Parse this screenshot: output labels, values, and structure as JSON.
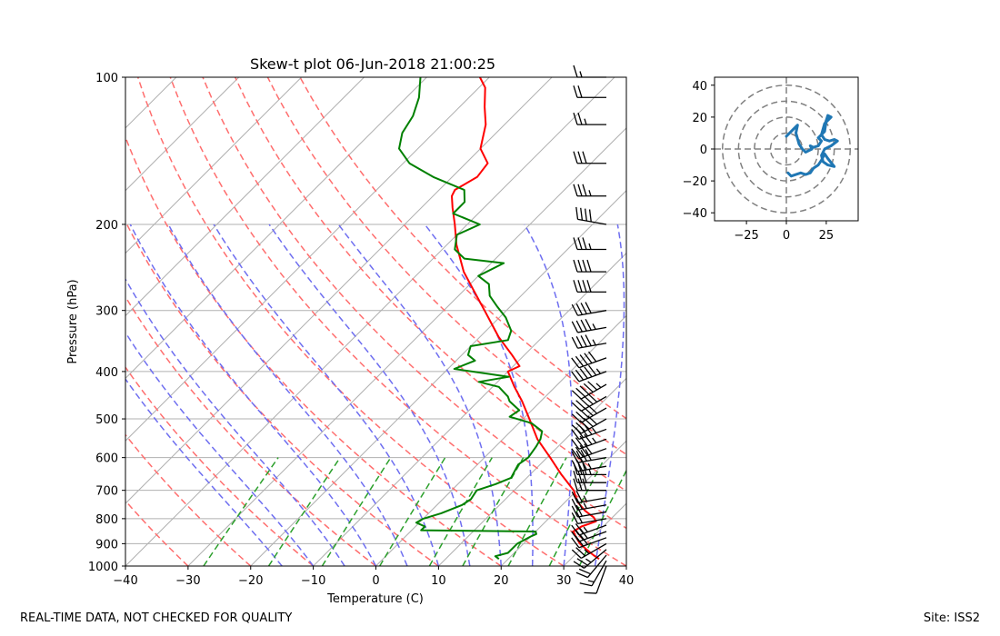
{
  "chart_data": [
    {
      "type": "line",
      "kind": "skew-t log-p",
      "title": "Skew-t plot 06-Jun-2018 21:00:25",
      "xlabel": "Temperature (C)",
      "ylabel": "Pressure (hPa)",
      "xlim": [
        -40,
        40
      ],
      "ylim": [
        1000,
        100
      ],
      "x_ticks": [
        -40,
        -30,
        -20,
        -10,
        0,
        10,
        20,
        30,
        40
      ],
      "x_tick_labels": [
        "−40",
        "−30",
        "−20",
        "−10",
        "0",
        "10",
        "20",
        "30",
        "40"
      ],
      "y_ticks": [
        1000,
        900,
        800,
        700,
        600,
        500,
        400,
        300,
        200,
        100
      ],
      "y_tick_labels": [
        "1000",
        "900",
        "800",
        "700",
        "600",
        "500",
        "400",
        "300",
        "200",
        "100"
      ],
      "grid": true,
      "skew_deg": 45,
      "series": [
        {
          "name": "Temperature",
          "color": "#ff0000",
          "points": [
            [
              967,
              34.5
            ],
            [
              950,
              33.0
            ],
            [
              925,
              31.0
            ],
            [
              900,
              29.0
            ],
            [
              875,
              27.5
            ],
            [
              850,
              26.0
            ],
            [
              830,
              26.5
            ],
            [
              810,
              28.0
            ],
            [
              795,
              27.0
            ],
            [
              770,
              24.5
            ],
            [
              740,
              22.0
            ],
            [
              700,
              19.5
            ],
            [
              650,
              15.0
            ],
            [
              600,
              10.5
            ],
            [
              550,
              5.5
            ],
            [
              500,
              1.0
            ],
            [
              460,
              -3.0
            ],
            [
              430,
              -6.5
            ],
            [
              400,
              -10.0
            ],
            [
              390,
              -9.0
            ],
            [
              370,
              -12.0
            ],
            [
              340,
              -17.0
            ],
            [
              300,
              -23.5
            ],
            [
              270,
              -29.0
            ],
            [
              250,
              -33.0
            ],
            [
              220,
              -38.5
            ],
            [
              200,
              -42.0
            ],
            [
              185,
              -45.0
            ],
            [
              175,
              -47.0
            ],
            [
              170,
              -47.5
            ],
            [
              160,
              -46.0
            ],
            [
              150,
              -46.5
            ],
            [
              140,
              -50.0
            ],
            [
              125,
              -53.0
            ],
            [
              115,
              -56.0
            ],
            [
              105,
              -59.0
            ],
            [
              100,
              -61.5
            ]
          ]
        },
        {
          "name": "Dewpoint",
          "color": "#008000",
          "points": [
            [
              967,
              18.5
            ],
            [
              955,
              17.5
            ],
            [
              940,
              19.0
            ],
            [
              900,
              19.0
            ],
            [
              870,
              20.0
            ],
            [
              860,
              20.5
            ],
            [
              850,
              20.0
            ],
            [
              845,
              1.5
            ],
            [
              830,
              1.5
            ],
            [
              815,
              -0.5
            ],
            [
              800,
              0.0
            ],
            [
              780,
              2.0
            ],
            [
              750,
              4.0
            ],
            [
              730,
              4.5
            ],
            [
              700,
              4.0
            ],
            [
              680,
              6.0
            ],
            [
              660,
              7.5
            ],
            [
              620,
              6.5
            ],
            [
              600,
              7.0
            ],
            [
              570,
              6.5
            ],
            [
              550,
              6.0
            ],
            [
              530,
              5.0
            ],
            [
              510,
              2.0
            ],
            [
              495,
              -2.5
            ],
            [
              480,
              -2.0
            ],
            [
              460,
              -5.0
            ],
            [
              450,
              -6.0
            ],
            [
              430,
              -9.0
            ],
            [
              420,
              -13.0
            ],
            [
              410,
              -9.0
            ],
            [
              395,
              -19.0
            ],
            [
              380,
              -17.0
            ],
            [
              370,
              -19.0
            ],
            [
              355,
              -20.0
            ],
            [
              345,
              -15.0
            ],
            [
              330,
              -16.0
            ],
            [
              310,
              -19.0
            ],
            [
              295,
              -22.0
            ],
            [
              280,
              -25.0
            ],
            [
              265,
              -27.0
            ],
            [
              255,
              -30.0
            ],
            [
              240,
              -28.0
            ],
            [
              235,
              -35.0
            ],
            [
              225,
              -38.0
            ],
            [
              210,
              -40.0
            ],
            [
              200,
              -38.0
            ],
            [
              190,
              -44.0
            ],
            [
              180,
              -44.0
            ],
            [
              170,
              -46.0
            ],
            [
              160,
              -53.0
            ],
            [
              150,
              -59.0
            ],
            [
              140,
              -63.0
            ],
            [
              130,
              -65.0
            ],
            [
              120,
              -66.0
            ],
            [
              110,
              -68.0
            ],
            [
              100,
              -71.0
            ]
          ]
        }
      ],
      "dry_adiabats_theta_c": [
        -30,
        -20,
        -10,
        0,
        10,
        20,
        30,
        40,
        50,
        60,
        70,
        80
      ],
      "moist_adiabats_start_c": [
        -15,
        -10,
        -5,
        0,
        5,
        10,
        15,
        20,
        25,
        30,
        35
      ],
      "mixing_ratio_lines_g_kg": [
        0.4,
        1,
        2,
        4,
        7,
        10,
        16,
        24,
        32
      ],
      "wind_barbs": {
        "color": "#000000",
        "pressures": [
          1000,
          975,
          950,
          925,
          900,
          875,
          850,
          825,
          800,
          775,
          750,
          725,
          700,
          675,
          650,
          625,
          600,
          575,
          550,
          525,
          500,
          475,
          450,
          425,
          400,
          375,
          350,
          325,
          300,
          275,
          250,
          225,
          200,
          175,
          150,
          125,
          110,
          100
        ],
        "speeds_kt": [
          10,
          15,
          20,
          25,
          25,
          30,
          30,
          25,
          20,
          20,
          25,
          25,
          30,
          30,
          35,
          35,
          40,
          40,
          45,
          45,
          50,
          50,
          50,
          55,
          55,
          50,
          45,
          45,
          40,
          40,
          40,
          35,
          40,
          35,
          30,
          25,
          20,
          15
        ],
        "dirs_deg": [
          200,
          210,
          220,
          230,
          240,
          250,
          250,
          250,
          260,
          260,
          260,
          260,
          270,
          270,
          270,
          260,
          260,
          250,
          250,
          250,
          240,
          240,
          240,
          240,
          250,
          250,
          260,
          260,
          260,
          270,
          270,
          270,
          280,
          270,
          270,
          270,
          270,
          270
        ]
      }
    },
    {
      "type": "line",
      "kind": "hodograph",
      "xlim": [
        -45,
        45
      ],
      "ylim": [
        -45,
        45
      ],
      "x_ticks": [
        -25,
        0,
        25
      ],
      "x_tick_labels": [
        "−25",
        "0",
        "25"
      ],
      "y_ticks": [
        -40,
        -20,
        0,
        20,
        40
      ],
      "y_tick_labels": [
        "−40",
        "−20",
        "0",
        "20",
        "40"
      ],
      "range_rings": [
        10,
        20,
        30,
        40
      ],
      "color": "#1f77b4",
      "points": [
        [
          0,
          8
        ],
        [
          4,
          12
        ],
        [
          6,
          14
        ],
        [
          7,
          15
        ],
        [
          6,
          10
        ],
        [
          8,
          3
        ],
        [
          10,
          0
        ],
        [
          12,
          -2
        ],
        [
          14,
          -1
        ],
        [
          16,
          0
        ],
        [
          15,
          2
        ],
        [
          17,
          1
        ],
        [
          20,
          2
        ],
        [
          22,
          5
        ],
        [
          20,
          7
        ],
        [
          24,
          11
        ],
        [
          25,
          18
        ],
        [
          26,
          21
        ],
        [
          28,
          20
        ],
        [
          24,
          16
        ],
        [
          22,
          9
        ],
        [
          24,
          6
        ],
        [
          27,
          5
        ],
        [
          30,
          6
        ],
        [
          32,
          5
        ],
        [
          28,
          2
        ],
        [
          24,
          0
        ],
        [
          22,
          -4
        ],
        [
          23,
          -8
        ],
        [
          26,
          -10
        ],
        [
          30,
          -11
        ],
        [
          26,
          -6
        ],
        [
          24,
          -3
        ],
        [
          22,
          -7
        ],
        [
          20,
          -10
        ],
        [
          17,
          -12
        ],
        [
          15,
          -15
        ],
        [
          12,
          -16
        ],
        [
          9,
          -15
        ],
        [
          6,
          -16
        ],
        [
          3,
          -17
        ],
        [
          1,
          -15
        ]
      ]
    }
  ],
  "footer": {
    "left": "REAL-TIME DATA, NOT CHECKED FOR QUALITY",
    "right": "Site: ISS2"
  },
  "colors": {
    "temperature": "#ff0000",
    "dewpoint": "#008000",
    "dry_adiabat": "#ff6e6e",
    "moist_adiabat": "#6e6ef0",
    "mixing_ratio": "#2ca02c",
    "isotherm": "#b0b0b0",
    "hodograph": "#1f77b4",
    "ring": "#808080"
  }
}
